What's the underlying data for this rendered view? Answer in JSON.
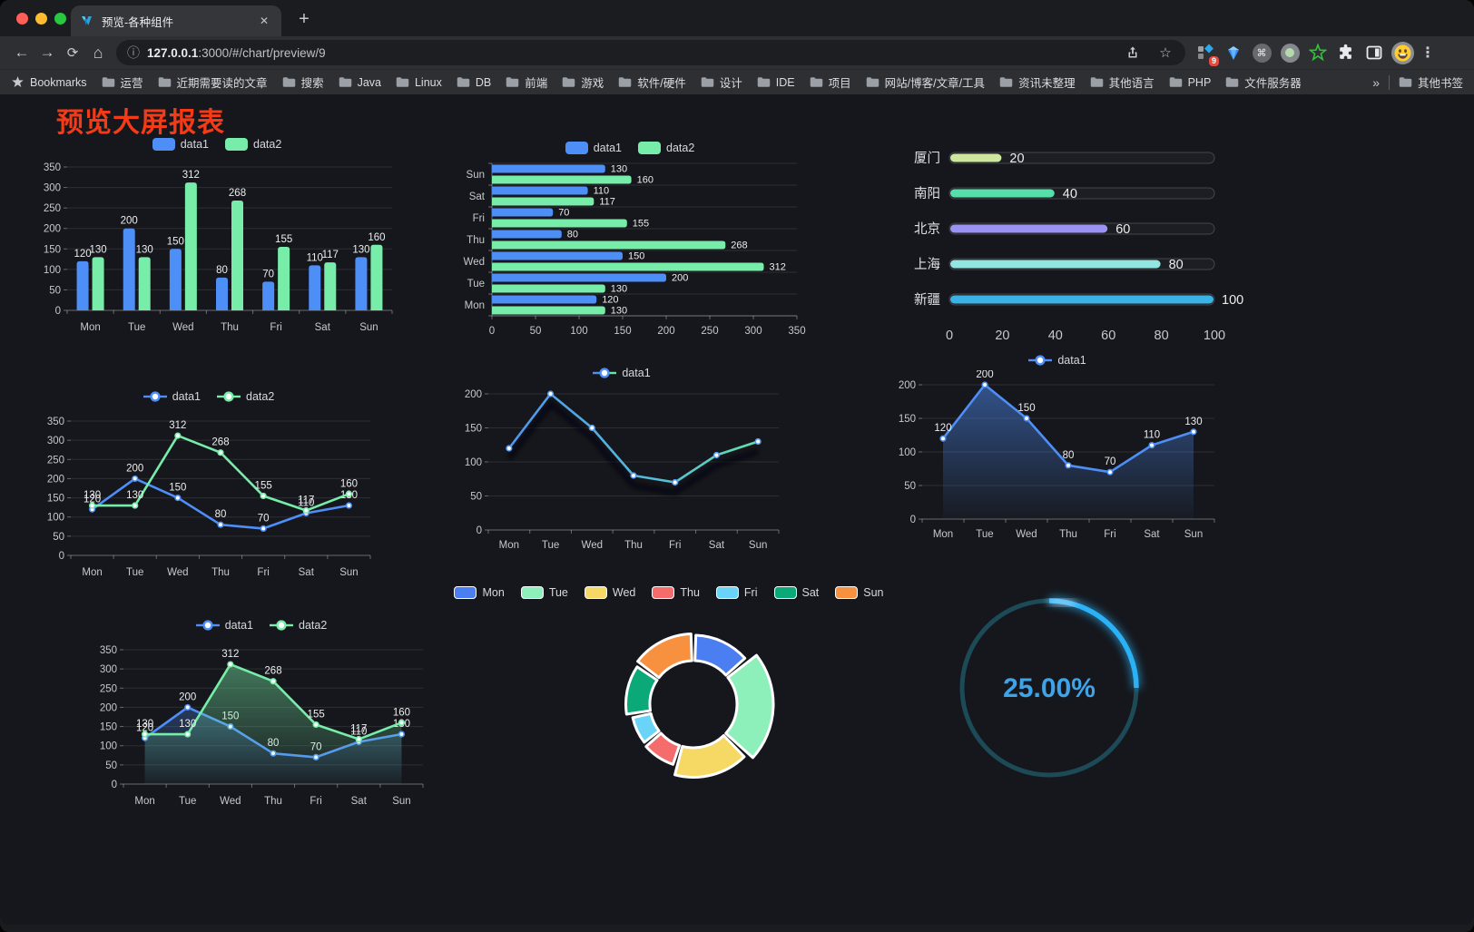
{
  "browser": {
    "tab_title": "预览-各种组件",
    "new_tab_label": "+",
    "close_label": "✕",
    "url_host": "127.0.0.1",
    "url_path": ":3000/#/chart/preview/9",
    "bookmarks_label": "Bookmarks",
    "bookmarks": [
      "运营",
      "近期需要读的文章",
      "搜索",
      "Java",
      "Linux",
      "DB",
      "前端",
      "游戏",
      "软件/硬件",
      "设计",
      "IDE",
      "项目",
      "网站/博客/文章/工具",
      "资讯未整理",
      "其他语言",
      "PHP",
      "文件服务器"
    ],
    "overflow_chevron": "»",
    "other_bookmarks": "其他书签",
    "extension_badge": "9"
  },
  "page": {
    "title": "预览大屏报表",
    "title_color": "#f43b17"
  },
  "theme": {
    "background": "#16171c",
    "axis_text": "#c6c8cd",
    "value_label": "#eceded",
    "grid_line": "rgba(255,255,255,0.10)",
    "axis_line": "rgba(255,255,255,0.35)",
    "blue": "#4e8ef7",
    "green": "#77eda9"
  },
  "chart_data": [
    {
      "id": "c1",
      "type": "bar",
      "variant": "grouped-vertical",
      "categories": [
        "Mon",
        "Tue",
        "Wed",
        "Thu",
        "Fri",
        "Sat",
        "Sun"
      ],
      "series": [
        {
          "name": "data1",
          "color": "#4e8ef7",
          "values": [
            120,
            200,
            150,
            80,
            70,
            110,
            130
          ]
        },
        {
          "name": "data2",
          "color": "#77eda9",
          "values": [
            130,
            130,
            312,
            268,
            155,
            117,
            160
          ]
        }
      ],
      "ylim": [
        0,
        350
      ],
      "ytick_step": 50,
      "legend_position": "top",
      "show_value_labels": true
    },
    {
      "id": "c2",
      "type": "bar",
      "variant": "grouped-horizontal",
      "category_display": "reversed-top-sun",
      "categories": [
        "Mon",
        "Tue",
        "Wed",
        "Thu",
        "Fri",
        "Sat",
        "Sun"
      ],
      "series": [
        {
          "name": "data1",
          "color": "#4e8ef7",
          "values": [
            120,
            200,
            150,
            80,
            70,
            110,
            130
          ]
        },
        {
          "name": "data2",
          "color": "#77eda9",
          "values": [
            130,
            130,
            312,
            268,
            155,
            117,
            160
          ]
        }
      ],
      "xlim": [
        0,
        350
      ],
      "xtick_step": 50,
      "legend_position": "top",
      "show_value_labels": true
    },
    {
      "id": "c3",
      "type": "bar",
      "variant": "capsule-progress",
      "items": [
        {
          "label": "厦门",
          "value": 20,
          "color": "#cde89e"
        },
        {
          "label": "南阳",
          "value": 40,
          "color": "#55dfa9"
        },
        {
          "label": "北京",
          "value": 60,
          "color": "#9b93f3"
        },
        {
          "label": "上海",
          "value": 80,
          "color": "#92e6e2"
        },
        {
          "label": "新疆",
          "value": 100,
          "color": "#39b2e6"
        }
      ],
      "xlim": [
        0,
        100
      ],
      "xticks": [
        0,
        20,
        40,
        60,
        80,
        100
      ],
      "show_value_labels": true
    },
    {
      "id": "c4",
      "type": "line",
      "variant": "multi-line",
      "categories": [
        "Mon",
        "Tue",
        "Wed",
        "Thu",
        "Fri",
        "Sat",
        "Sun"
      ],
      "series": [
        {
          "name": "data1",
          "color": "#4e8ef7",
          "values": [
            120,
            200,
            150,
            80,
            70,
            110,
            130
          ]
        },
        {
          "name": "data2",
          "color": "#77eda9",
          "values": [
            130,
            130,
            312,
            268,
            155,
            117,
            160
          ]
        }
      ],
      "ylim": [
        0,
        350
      ],
      "ytick_step": 50,
      "legend_position": "top",
      "show_value_labels": true
    },
    {
      "id": "c5",
      "type": "line",
      "variant": "gradient-line",
      "categories": [
        "Mon",
        "Tue",
        "Wed",
        "Thu",
        "Fri",
        "Sat",
        "Sun"
      ],
      "series": [
        {
          "name": "data1",
          "gradient": [
            "#4e8ef7",
            "#55c0d8",
            "#65e7a3"
          ],
          "marker_color": "#5b9cf0",
          "values": [
            120,
            200,
            150,
            80,
            70,
            110,
            130
          ]
        }
      ],
      "ylim": [
        0,
        200
      ],
      "ytick_step": 50,
      "legend_position": "top",
      "show_value_labels": false,
      "shadow": true
    },
    {
      "id": "c6",
      "type": "area",
      "variant": "single-area",
      "categories": [
        "Mon",
        "Tue",
        "Wed",
        "Thu",
        "Fri",
        "Sat",
        "Sun"
      ],
      "series": [
        {
          "name": "data1",
          "color": "#4e8ef7",
          "values": [
            120,
            200,
            150,
            80,
            70,
            110,
            130
          ]
        }
      ],
      "ylim": [
        0,
        200
      ],
      "ytick_step": 50,
      "legend_position": "top",
      "show_value_labels": true
    },
    {
      "id": "c7",
      "type": "area",
      "variant": "multi-area",
      "categories": [
        "Mon",
        "Tue",
        "Wed",
        "Thu",
        "Fri",
        "Sat",
        "Sun"
      ],
      "series": [
        {
          "name": "data1",
          "color": "#4e8ef7",
          "values": [
            120,
            200,
            150,
            80,
            70,
            110,
            130
          ]
        },
        {
          "name": "data2",
          "color": "#77eda9",
          "values": [
            130,
            130,
            312,
            268,
            155,
            117,
            160
          ]
        }
      ],
      "ylim": [
        0,
        350
      ],
      "ytick_step": 50,
      "legend_position": "top",
      "show_value_labels": true
    },
    {
      "id": "c8",
      "type": "pie",
      "variant": "rose-donut",
      "categories": [
        "Mon",
        "Tue",
        "Wed",
        "Thu",
        "Fri",
        "Sat",
        "Sun"
      ],
      "values": [
        120,
        200,
        150,
        80,
        70,
        110,
        130
      ],
      "colors": [
        "#4b7ef0",
        "#8df0ba",
        "#f6d865",
        "#f56c6c",
        "#69d4f7",
        "#0ba878",
        "#f7913f"
      ],
      "legend_position": "top"
    },
    {
      "id": "c9",
      "type": "gauge",
      "value": 25,
      "label": "25.00%",
      "color": "#2bb1f6",
      "track_color": "#1d4a57",
      "text_color": "#3fa3e8"
    }
  ]
}
